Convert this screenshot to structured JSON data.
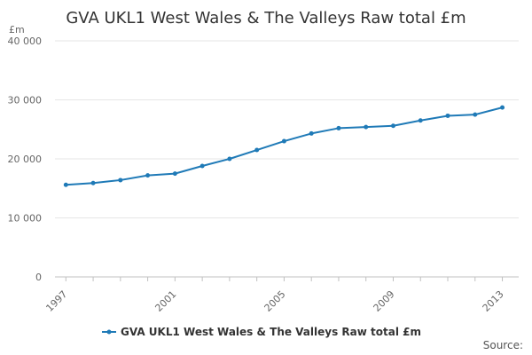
{
  "chart_data": {
    "type": "line",
    "title": "GVA UKL1 West Wales & The Valleys Raw total £m",
    "y_unit": "£m",
    "x": [
      1997,
      1998,
      1999,
      2000,
      2001,
      2002,
      2003,
      2004,
      2005,
      2006,
      2007,
      2008,
      2009,
      2010,
      2011,
      2012,
      2013
    ],
    "x_tick_labels": [
      "1997",
      "2001",
      "2005",
      "2009",
      "2013"
    ],
    "x_tick_values": [
      1997,
      2001,
      2005,
      2009,
      2013
    ],
    "y_tick_labels": [
      "0",
      "10 000",
      "20 000",
      "30 000",
      "40 000"
    ],
    "y_tick_values": [
      0,
      10000,
      20000,
      30000,
      40000
    ],
    "ylim": [
      0,
      40000
    ],
    "grid": "horizontal",
    "legend_position": "bottom",
    "series": [
      {
        "name": "GVA UKL1 West Wales & The Valleys Raw total £m",
        "color": "#1f7ab7",
        "values": [
          15600,
          15900,
          16400,
          17200,
          17500,
          18800,
          20000,
          21500,
          23000,
          24300,
          25200,
          25400,
          25600,
          26500,
          27300,
          27500,
          28700
        ]
      }
    ]
  },
  "footer": {
    "source_label": "Source:"
  }
}
